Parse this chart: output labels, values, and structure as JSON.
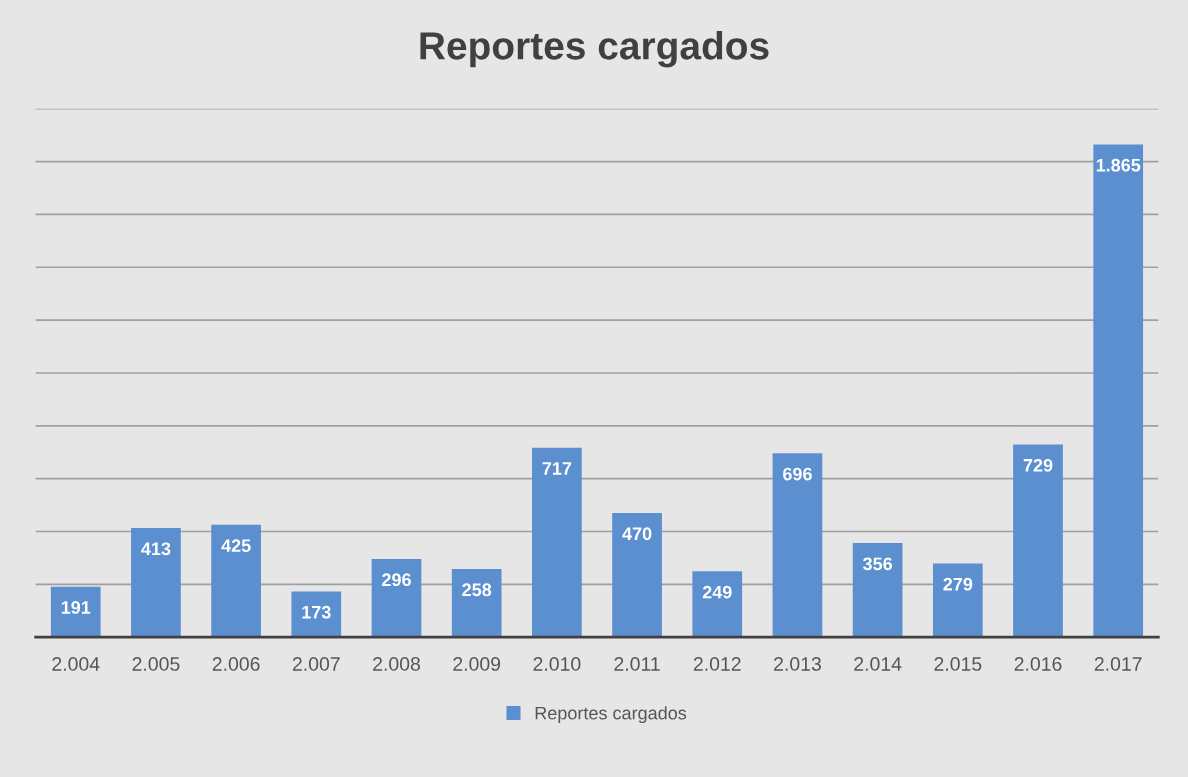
{
  "chart_data": {
    "type": "bar",
    "title": "Reportes cargados",
    "categories": [
      "2.004",
      "2.005",
      "2.006",
      "2.007",
      "2.008",
      "2.009",
      "2.010",
      "2.011",
      "2.012",
      "2.013",
      "2.014",
      "2.015",
      "2.016",
      "2.017"
    ],
    "series": [
      {
        "name": "Reportes cargados",
        "color": "#5b8fd0",
        "values": [
          191,
          413,
          425,
          173,
          296,
          258,
          717,
          470,
          249,
          696,
          356,
          279,
          729,
          1865
        ],
        "value_labels": [
          "191",
          "413",
          "425",
          "173",
          "296",
          "258",
          "717",
          "470",
          "249",
          "696",
          "356",
          "279",
          "729",
          "1.865"
        ]
      }
    ],
    "ylim": [
      0,
      2000
    ],
    "yticks": [
      {
        "value": 0,
        "label": null
      },
      {
        "value": 200,
        "label": null
      },
      {
        "value": 400,
        "label": null
      },
      {
        "value": 600,
        "label": null
      },
      {
        "value": 800,
        "label": null
      },
      {
        "value": 1000,
        "label": null
      },
      {
        "value": 1200,
        "label": null
      },
      {
        "value": 1400,
        "label": null
      },
      {
        "value": 1600,
        "label": null
      },
      {
        "value": 1800,
        "label": null
      },
      {
        "value": 2000,
        "label": null
      }
    ],
    "grid": "y",
    "legend": "bottom",
    "tick_labels": "x"
  }
}
